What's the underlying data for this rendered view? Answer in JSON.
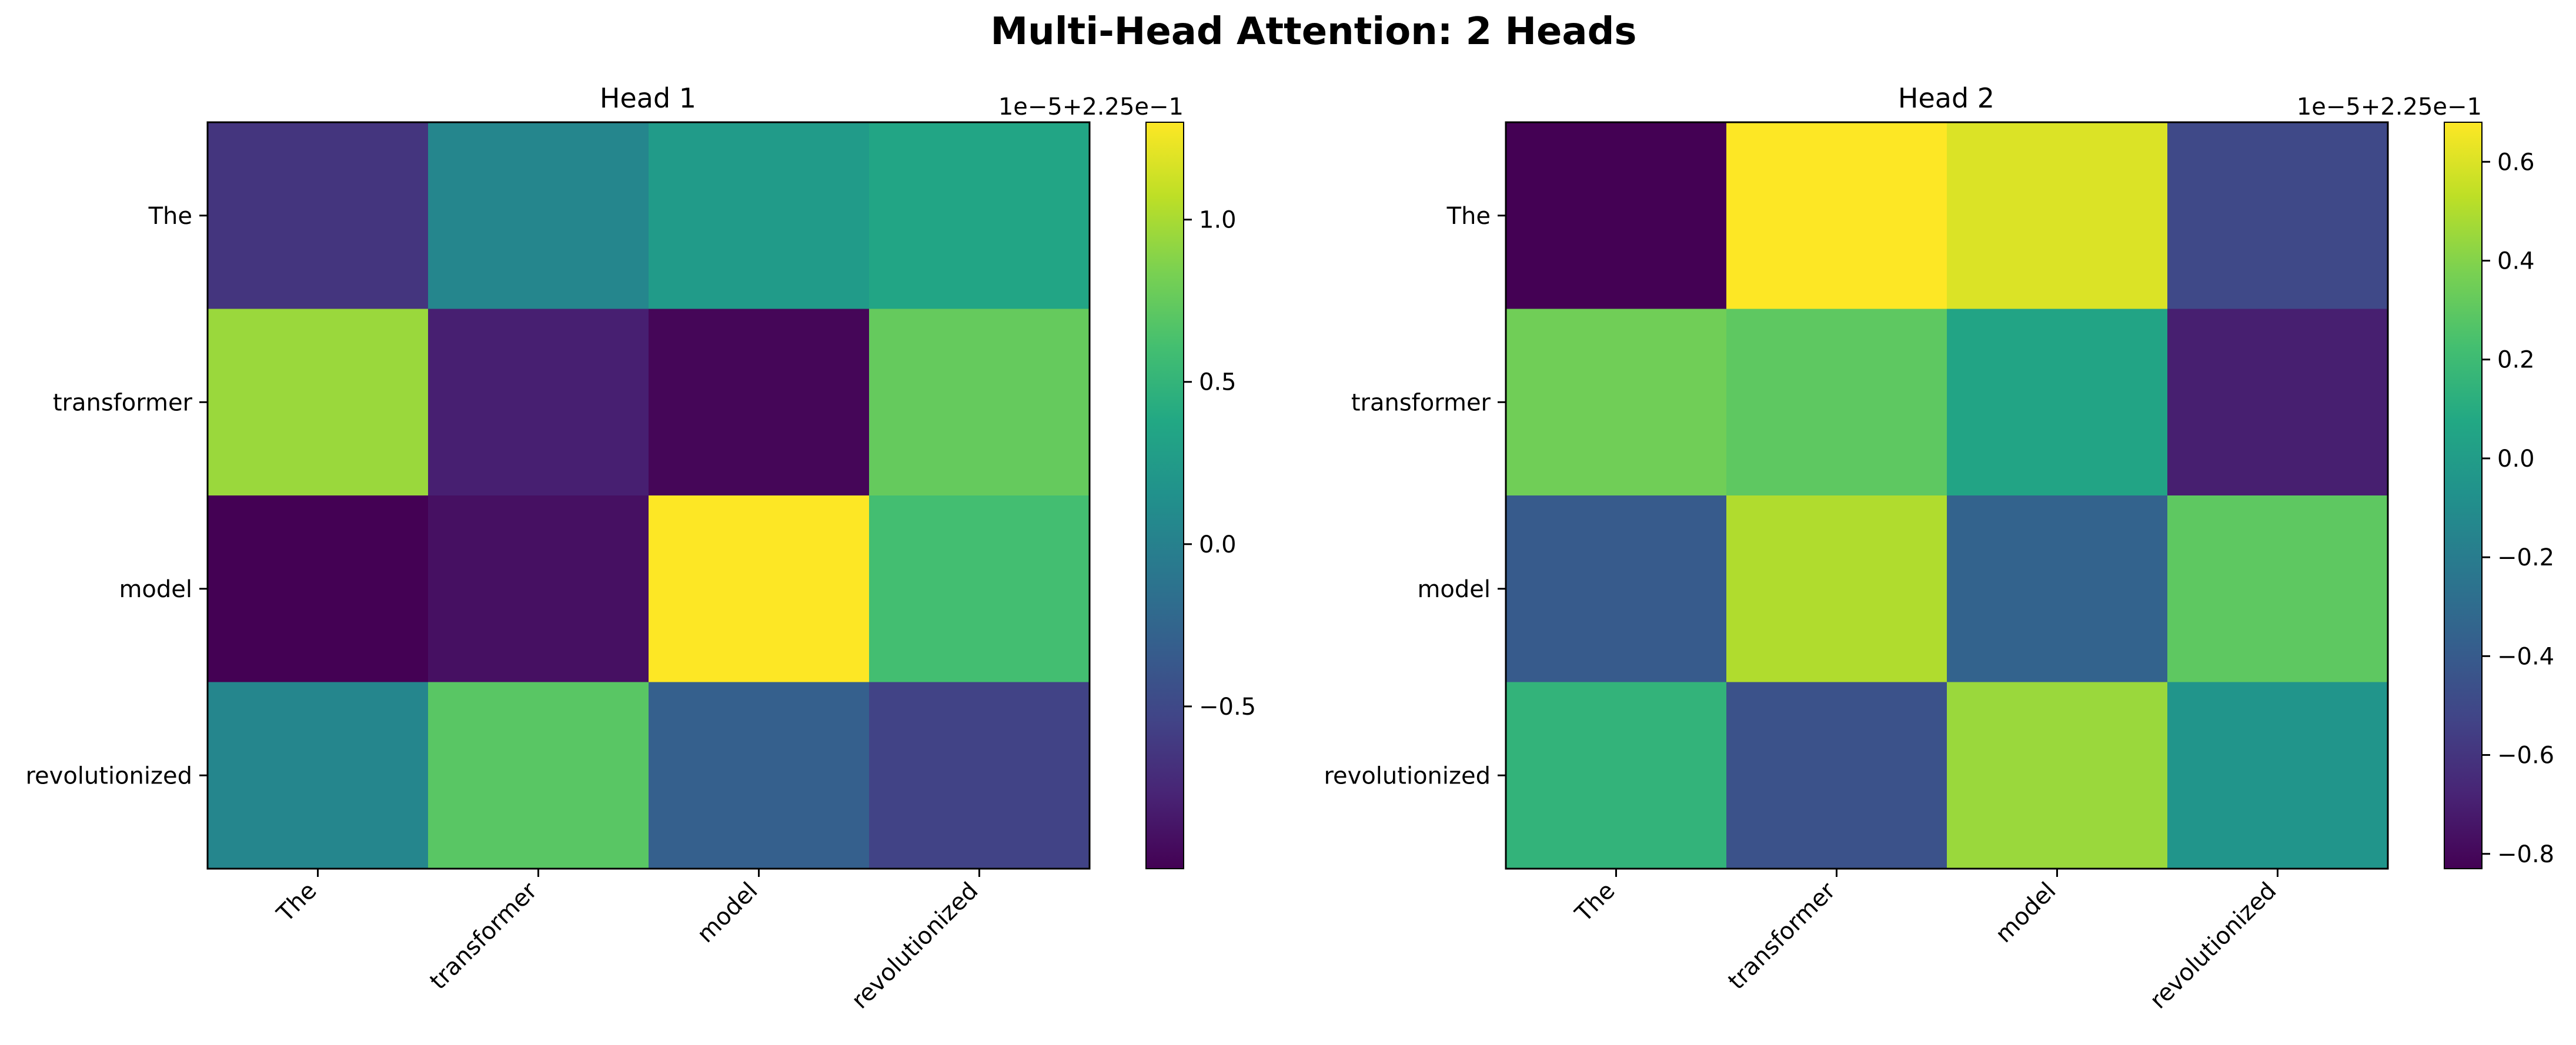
{
  "figure": {
    "title": "Multi-Head Attention: 2 Heads"
  },
  "chart_data": [
    {
      "type": "heatmap",
      "title": "Head 1",
      "x_tick_labels": [
        "The",
        "transformer",
        "model",
        "revolutionized"
      ],
      "y_tick_labels": [
        "The",
        "transformer",
        "model",
        "revolutionized"
      ],
      "colormap": "viridis",
      "offset_text": "1e−5+2.25e−1",
      "values_scaled": [
        [
          -0.65,
          0.05,
          0.25,
          0.35
        ],
        [
          0.95,
          -0.8,
          -0.97,
          0.75
        ],
        [
          -1.0,
          -0.9,
          1.3,
          0.6
        ],
        [
          0.05,
          0.7,
          -0.3,
          -0.55
        ]
      ],
      "color_range": [
        -1.0,
        1.3
      ],
      "colorbar_ticks": [
        -0.5,
        0.0,
        0.5,
        1.0
      ],
      "colorbar_tick_labels": [
        "−0.5",
        "0.0",
        "0.5",
        "1.0"
      ]
    },
    {
      "type": "heatmap",
      "title": "Head 2",
      "x_tick_labels": [
        "The",
        "transformer",
        "model",
        "revolutionized"
      ],
      "y_tick_labels": [
        "The",
        "transformer",
        "model",
        "revolutionized"
      ],
      "colormap": "viridis",
      "offset_text": "1e−5+2.25e−1",
      "values_scaled": [
        [
          -0.83,
          0.68,
          0.6,
          -0.5
        ],
        [
          0.35,
          0.3,
          0.05,
          -0.7
        ],
        [
          -0.4,
          0.5,
          -0.35,
          0.3
        ],
        [
          0.15,
          -0.45,
          0.45,
          -0.05
        ]
      ],
      "color_range": [
        -0.83,
        0.68
      ],
      "colorbar_ticks": [
        -0.8,
        -0.6,
        -0.4,
        -0.2,
        0.0,
        0.2,
        0.4,
        0.6
      ],
      "colorbar_tick_labels": [
        "−0.8",
        "−0.6",
        "−0.4",
        "−0.2",
        "0.0",
        "0.2",
        "0.4",
        "0.6"
      ]
    }
  ]
}
